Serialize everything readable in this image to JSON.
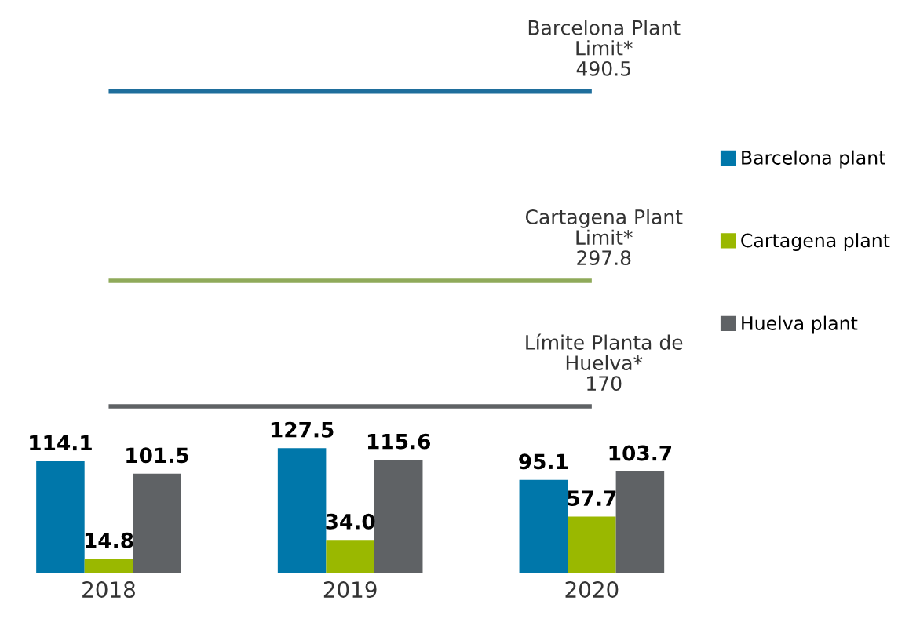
{
  "chart_data": {
    "type": "bar",
    "categories": [
      "2018",
      "2019",
      "2020"
    ],
    "series": [
      {
        "name": "Barcelona plant",
        "color": "#0077aa",
        "values": [
          114.1,
          127.5,
          95.1
        ]
      },
      {
        "name": "Cartagena plant",
        "color": "#9ab800",
        "values": [
          14.8,
          34.0,
          57.7
        ],
        "value_labels": [
          "14.8",
          "34.0",
          "57.7"
        ]
      },
      {
        "name": "Huelva plant",
        "color": "#5f6265",
        "values": [
          101.5,
          115.6,
          103.7
        ]
      }
    ],
    "data_labels": true,
    "ref_lines": [
      {
        "axis": "y",
        "value": 490.5,
        "label": "Barcelona Plant\nLimit*\n490.5",
        "color": "#1f6e9c"
      },
      {
        "axis": "y",
        "value": 297.8,
        "label": "Cartagena Plant\nLimit*\n297.8",
        "color": "#8faa5a"
      },
      {
        "axis": "y",
        "value": 170,
        "label": "Límite Planta de\nHuelva*\n170",
        "color": "#5f6265"
      }
    ],
    "legend": "right",
    "grid": false
  }
}
